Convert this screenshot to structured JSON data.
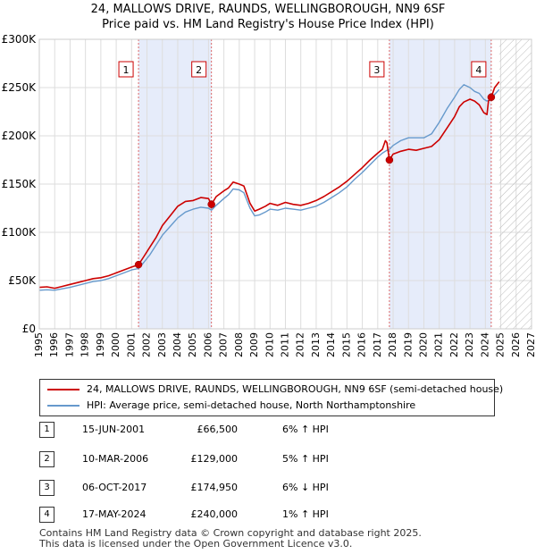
{
  "chart_data": {
    "type": "line",
    "title": "24, MALLOWS DRIVE, RAUNDS, WELLINGBOROUGH, NN9 6SF",
    "subtitle": "Price paid vs. HM Land Registry's House Price Index (HPI)",
    "xlabel": "",
    "ylabel": "",
    "xlim": [
      1995,
      2027
    ],
    "ylim": [
      0,
      300000
    ],
    "y_ticks": [
      0,
      50000,
      100000,
      150000,
      200000,
      250000,
      300000
    ],
    "y_tick_labels": [
      "£0",
      "£50K",
      "£100K",
      "£150K",
      "£200K",
      "£250K",
      "£300K"
    ],
    "x_ticks": [
      1995,
      1996,
      1997,
      1998,
      1999,
      2000,
      2001,
      2002,
      2003,
      2004,
      2005,
      2006,
      2007,
      2008,
      2009,
      2010,
      2011,
      2012,
      2013,
      2014,
      2015,
      2016,
      2017,
      2018,
      2019,
      2020,
      2021,
      2022,
      2023,
      2024,
      2025,
      2026,
      2027
    ],
    "x_tick_labels": [
      "1995",
      "1996",
      "1997",
      "1998",
      "1999",
      "2000",
      "2001",
      "2002",
      "2003",
      "2004",
      "2005",
      "2006",
      "2007",
      "2008",
      "2009",
      "2010",
      "2011",
      "2012",
      "2013",
      "2014",
      "2015",
      "2016",
      "2017",
      "2018",
      "2019",
      "2020",
      "2021",
      "2022",
      "2023",
      "2024",
      "2025",
      "2026",
      "2027"
    ],
    "grid": true,
    "future_hatch_from": 2024.9,
    "shaded_ranges": [
      [
        2001.45,
        2006.19
      ],
      [
        2017.76,
        2024.38
      ]
    ],
    "series": [
      {
        "name": "24, MALLOWS DRIVE, RAUNDS, WELLINGBOROUGH, NN9 6SF (semi-detached house)",
        "color": "#cc0000",
        "x": [
          1995.0,
          1995.5,
          1996.0,
          1996.5,
          1997.0,
          1997.5,
          1998.0,
          1998.5,
          1999.0,
          1999.5,
          2000.0,
          2000.5,
          2001.0,
          2001.45,
          2001.8,
          2002.2,
          2002.6,
          2003.0,
          2003.5,
          2004.0,
          2004.5,
          2005.0,
          2005.5,
          2006.0,
          2006.19,
          2006.5,
          2007.0,
          2007.3,
          2007.6,
          2008.0,
          2008.3,
          2008.7,
          2009.0,
          2009.3,
          2009.7,
          2010.0,
          2010.5,
          2011.0,
          2011.5,
          2012.0,
          2012.5,
          2013.0,
          2013.5,
          2014.0,
          2014.5,
          2015.0,
          2015.5,
          2016.0,
          2016.5,
          2017.0,
          2017.3,
          2017.5,
          2017.6,
          2017.76,
          2018.0,
          2018.5,
          2019.0,
          2019.5,
          2020.0,
          2020.5,
          2021.0,
          2021.5,
          2022.0,
          2022.3,
          2022.6,
          2023.0,
          2023.3,
          2023.6,
          2023.9,
          2024.1,
          2024.2,
          2024.38,
          2024.6,
          2024.9
        ],
        "y": [
          43000,
          43500,
          42000,
          44000,
          46000,
          48000,
          50000,
          52000,
          53000,
          55000,
          58000,
          61000,
          64000,
          66500,
          75000,
          85000,
          95000,
          107000,
          117000,
          127000,
          132000,
          133000,
          136000,
          135000,
          129000,
          137000,
          143000,
          146000,
          152000,
          150000,
          148000,
          130000,
          122000,
          124000,
          127000,
          130000,
          128000,
          131000,
          129000,
          128000,
          130000,
          133000,
          137000,
          142000,
          147000,
          153000,
          160000,
          167000,
          175000,
          182000,
          186000,
          195000,
          193000,
          174950,
          181000,
          184000,
          186000,
          185000,
          187000,
          189000,
          196000,
          208000,
          220000,
          230000,
          235000,
          238000,
          236000,
          232000,
          224000,
          222000,
          236000,
          240000,
          250000,
          256000
        ]
      },
      {
        "name": "HPI: Average price, semi-detached house, North Northamptonshire",
        "color": "#6699cc",
        "x": [
          1995.0,
          1995.5,
          1996.0,
          1996.5,
          1997.0,
          1997.5,
          1998.0,
          1998.5,
          1999.0,
          1999.5,
          2000.0,
          2000.5,
          2001.0,
          2001.45,
          2001.8,
          2002.2,
          2002.6,
          2003.0,
          2003.5,
          2004.0,
          2004.5,
          2005.0,
          2005.5,
          2006.0,
          2006.19,
          2006.5,
          2007.0,
          2007.3,
          2007.6,
          2008.0,
          2008.3,
          2008.7,
          2009.0,
          2009.3,
          2009.7,
          2010.0,
          2010.5,
          2011.0,
          2011.5,
          2012.0,
          2012.5,
          2013.0,
          2013.5,
          2014.0,
          2014.5,
          2015.0,
          2015.5,
          2016.0,
          2016.5,
          2017.0,
          2017.3,
          2017.6,
          2017.76,
          2018.0,
          2018.5,
          2019.0,
          2019.5,
          2020.0,
          2020.5,
          2021.0,
          2021.5,
          2022.0,
          2022.3,
          2022.6,
          2023.0,
          2023.3,
          2023.6,
          2023.9,
          2024.1,
          2024.38,
          2024.6,
          2024.9
        ],
        "y": [
          40000,
          40500,
          40000,
          41500,
          43000,
          45000,
          47000,
          49000,
          50000,
          52000,
          55000,
          58000,
          61000,
          62500,
          69000,
          77000,
          87000,
          97000,
          106000,
          115000,
          121000,
          124000,
          126000,
          125000,
          123000,
          128000,
          135000,
          139000,
          145000,
          144000,
          141000,
          125000,
          117000,
          118000,
          121000,
          124000,
          123000,
          125000,
          124000,
          123000,
          125000,
          127000,
          131000,
          136000,
          141000,
          147000,
          155000,
          162000,
          170000,
          178000,
          182000,
          185000,
          186000,
          190000,
          195000,
          198000,
          198000,
          198000,
          202000,
          214000,
          228000,
          240000,
          248000,
          253000,
          250000,
          246000,
          244000,
          238000,
          236000,
          238000,
          243000,
          248000
        ]
      }
    ],
    "markers": [
      {
        "label": "1",
        "x": 2001.45,
        "y": 66500
      },
      {
        "label": "2",
        "x": 2006.19,
        "y": 129000
      },
      {
        "label": "3",
        "x": 2017.76,
        "y": 174950
      },
      {
        "label": "4",
        "x": 2024.38,
        "y": 240000
      }
    ]
  },
  "legend": {
    "property_label": "24, MALLOWS DRIVE, RAUNDS, WELLINGBOROUGH, NN9 6SF (semi-detached house)",
    "hpi_label": "HPI: Average price, semi-detached house, North Northamptonshire"
  },
  "transactions": [
    {
      "num": "1",
      "date": "15-JUN-2001",
      "price": "£66,500",
      "hpi": "6% ↑ HPI"
    },
    {
      "num": "2",
      "date": "10-MAR-2006",
      "price": "£129,000",
      "hpi": "5% ↑ HPI"
    },
    {
      "num": "3",
      "date": "06-OCT-2017",
      "price": "£174,950",
      "hpi": "6% ↓ HPI"
    },
    {
      "num": "4",
      "date": "17-MAY-2024",
      "price": "£240,000",
      "hpi": "1% ↑ HPI"
    }
  ],
  "footer": {
    "line1": "Contains HM Land Registry data © Crown copyright and database right 2025.",
    "line2": "This data is licensed under the Open Government Licence v3.0."
  }
}
